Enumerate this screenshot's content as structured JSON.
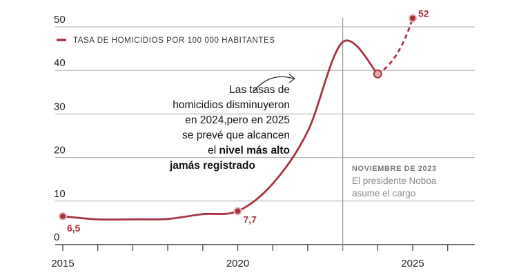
{
  "chart_data": {
    "type": "line",
    "title": "",
    "xlabel": "",
    "ylabel": "",
    "ylim": [
      0,
      50
    ],
    "xlim": [
      2015,
      2026.8
    ],
    "grid": true,
    "yticks": [
      "0",
      "10",
      "20",
      "30",
      "40",
      "50"
    ],
    "xticks": [
      "2015",
      "2020",
      "2025"
    ],
    "legend": {
      "label": "TASA DE HOMICIDIOS POR 100 000 HABITANTES",
      "placement": "top-left"
    },
    "series": [
      {
        "name": "TASA DE HOMICIDIOS POR 100 000 HABITANTES",
        "x": [
          2015,
          2016,
          2017,
          2018,
          2019,
          2020,
          2021,
          2022,
          2023,
          2024
        ],
        "y": [
          6.5,
          5.8,
          5.8,
          5.9,
          7.0,
          7.7,
          14.0,
          26.0,
          46.5,
          39.2
        ],
        "style": "solid"
      },
      {
        "name": "projection",
        "x": [
          2024,
          2025
        ],
        "y": [
          39.2,
          52
        ],
        "style": "dashed"
      }
    ],
    "data_labels": [
      {
        "x": 2015,
        "y": 6.5,
        "text": "6,5"
      },
      {
        "x": 2020,
        "y": 7.7,
        "text": "7,7"
      },
      {
        "x": 2025,
        "y": 52,
        "text": "52"
      }
    ],
    "color": "#a83240",
    "event": {
      "x": 2023,
      "title": "NOVIEMBRE DE 2023",
      "lines": [
        "El presidente Noboa",
        "asume el cargo"
      ]
    },
    "annotation": {
      "lines": [
        "Las tasas de",
        "homicidios disminuyeron",
        "en 2024,pero en 2025",
        "se prevé que alcancen"
      ],
      "line5_normal": "el ",
      "line5_bold": "nivel más alto",
      "line6_bold": "jamás registrado"
    }
  }
}
